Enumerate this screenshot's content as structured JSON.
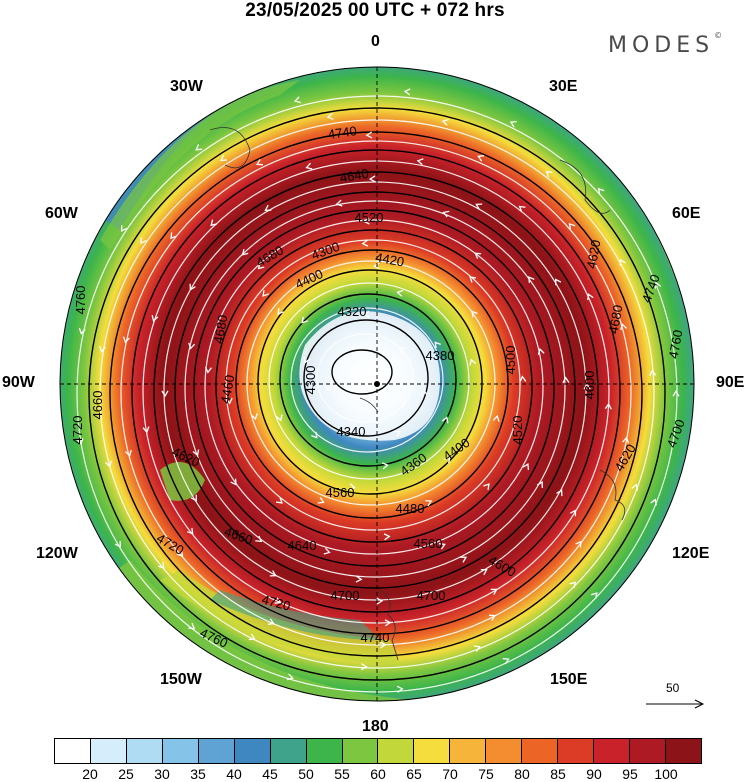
{
  "header": {
    "title": "23/05/2025  00 UTC  + 072 hrs",
    "brand": "MODES",
    "brand_mark": "©"
  },
  "longitude_labels": {
    "lon_0": "0",
    "lon_30e": "30E",
    "lon_60e": "60E",
    "lon_90e": "90E",
    "lon_120e": "120E",
    "lon_150e": "150E",
    "lon_180": "180",
    "lon_150w": "150W",
    "lon_120w": "120W",
    "lon_90w": "90W",
    "lon_60w": "60W",
    "lon_30w": "30W"
  },
  "reference_vector": {
    "label": "50"
  },
  "contour_labels": [
    "4740",
    "4640",
    "4520",
    "4300",
    "4420",
    "4400",
    "4320",
    "4300",
    "4340",
    "4360",
    "4400",
    "4460",
    "4480",
    "4560",
    "4620",
    "4640",
    "4660",
    "4720",
    "4700",
    "4720",
    "4760",
    "4740",
    "4700",
    "4600",
    "4560",
    "4620",
    "4700",
    "4680",
    "4760",
    "4740",
    "4600",
    "4520",
    "4680",
    "4760",
    "4720",
    "4620",
    "4660",
    "4680",
    "4380",
    "4500"
  ],
  "colorbar": {
    "labels": [
      "20",
      "25",
      "30",
      "35",
      "40",
      "45",
      "50",
      "55",
      "60",
      "65",
      "70",
      "75",
      "80",
      "85",
      "90",
      "95",
      "100"
    ],
    "colors": [
      "#ffffff",
      "#d6eefb",
      "#afdcf3",
      "#86c3e8",
      "#5ea3d4",
      "#3f87c0",
      "#3ea38a",
      "#3db54a",
      "#7dc640",
      "#c2d83a",
      "#f4dd3c",
      "#f7b43a",
      "#f48d2f",
      "#ec6527",
      "#dc3b25",
      "#c9222a",
      "#ad1a24",
      "#8c1317"
    ]
  }
}
